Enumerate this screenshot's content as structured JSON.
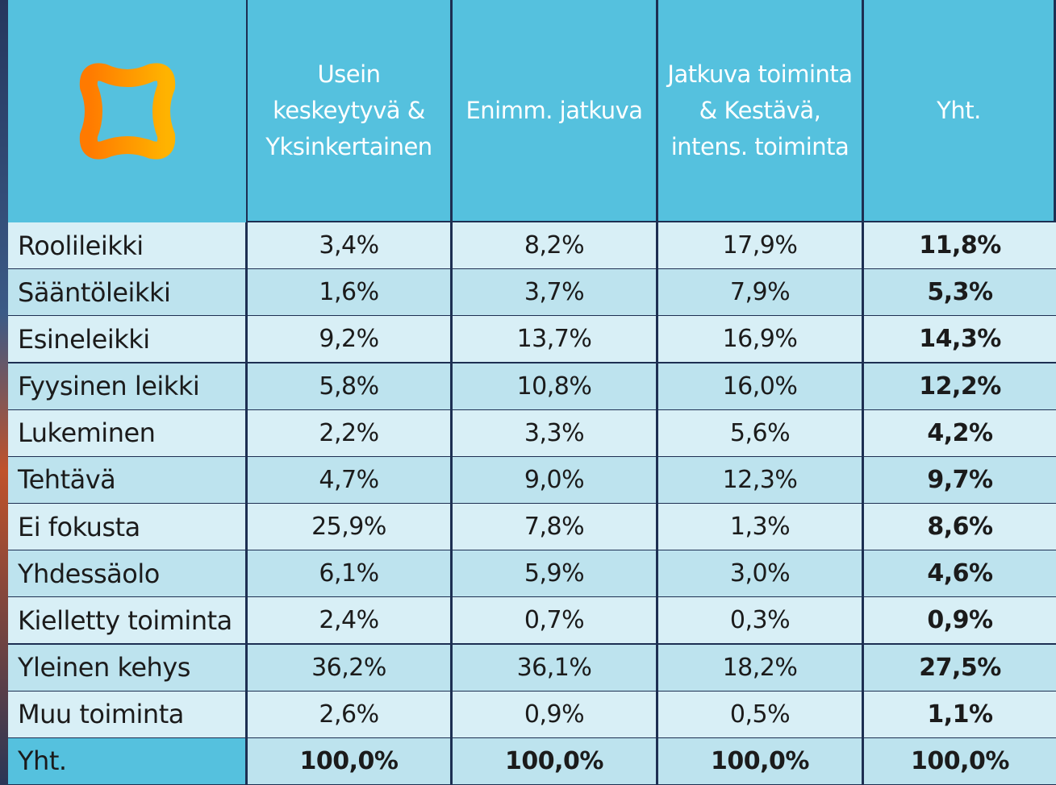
{
  "table": {
    "header": [
      "Usein keskeytyvä & Yksinkertainen",
      "Enimm. jatkuva",
      "Jatkuva toiminta & Kestävä, intens. toiminta",
      "Yht."
    ],
    "rows": [
      [
        "Roolileikki",
        "3,4%",
        "8,2%",
        "17,9%",
        "11,8%"
      ],
      [
        "Sääntöleikki",
        "1,6%",
        "3,7%",
        "7,9%",
        "5,3%"
      ],
      [
        "Esineleikki",
        "9,2%",
        "13,7%",
        "16,9%",
        "14,3%"
      ],
      [
        "Fyysinen leikki",
        "5,8%",
        "10,8%",
        "16,0%",
        "12,2%"
      ],
      [
        "Lukeminen",
        "2,2%",
        "3,3%",
        "5,6%",
        "4,2%"
      ],
      [
        "Tehtävä",
        "4,7%",
        "9,0%",
        "12,3%",
        "9,7%"
      ],
      [
        "Ei fokusta",
        "25,9%",
        "7,8%",
        "1,3%",
        "8,6%"
      ],
      [
        "Yhdessäolo",
        "6,1%",
        "5,9%",
        "3,0%",
        "4,6%"
      ],
      [
        "Kielletty toiminta",
        "2,4%",
        "0,7%",
        "0,3%",
        "0,9%"
      ],
      [
        "Yleinen kehys",
        "36,2%",
        "36,1%",
        "18,2%",
        "27,5%"
      ],
      [
        "Muu toiminta",
        "2,6%",
        "0,9%",
        "0,5%",
        "1,1%"
      ]
    ],
    "footer": [
      "Yht.",
      "100,0%",
      "100,0%",
      "100,0%",
      "100,0%"
    ]
  }
}
